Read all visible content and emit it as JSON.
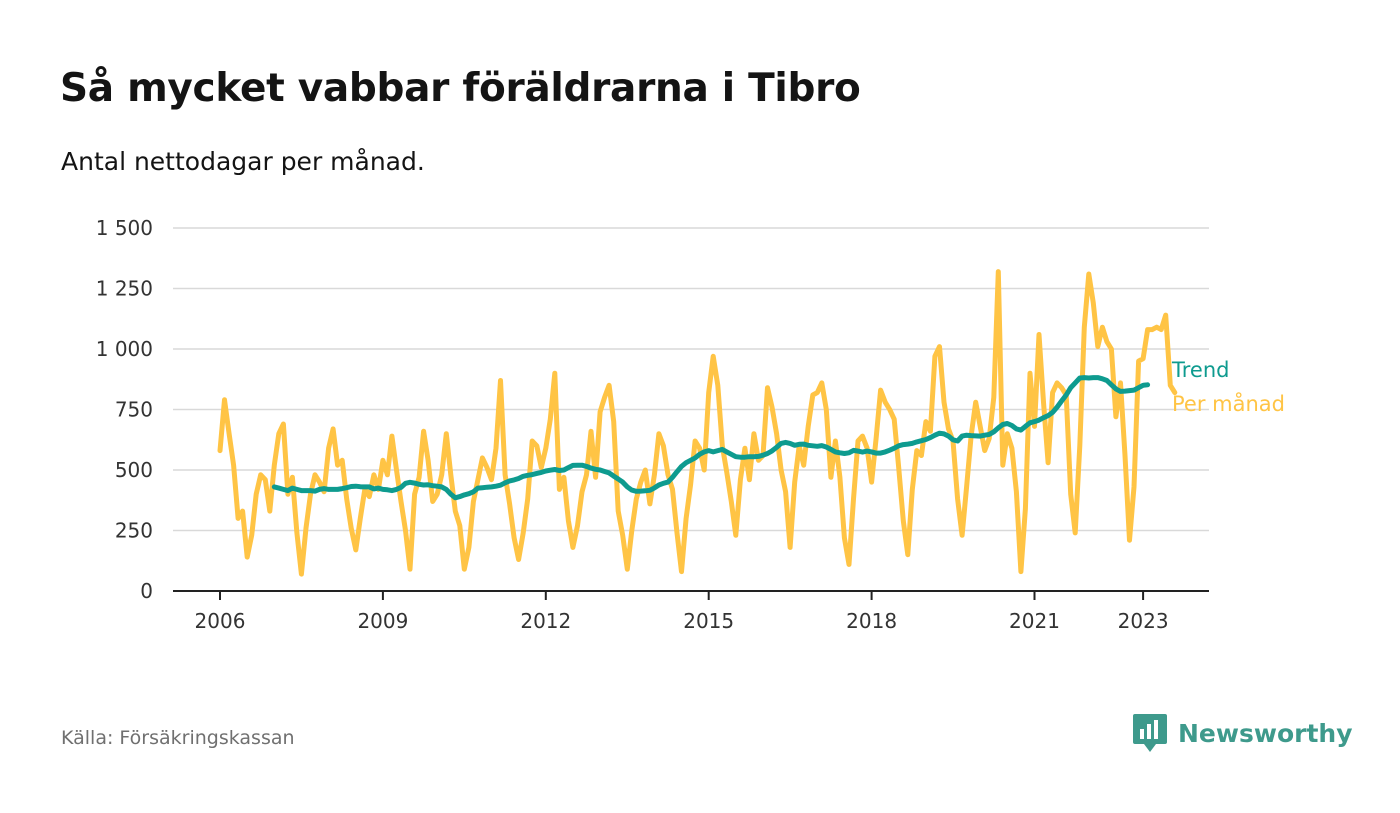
{
  "title": "Så mycket vabbar föräldrarna i Tibro",
  "subtitle": "Antal nettodagar per månad.",
  "source": "Källa: Försäkringskassan",
  "brand": {
    "name": "Newsworthy",
    "icon": "newsworthy-logo-icon",
    "color": "#3e9a8c"
  },
  "chart_data": {
    "type": "line",
    "x_start": "2006-01",
    "x_step": "month",
    "x_ticks": [
      "2006",
      "2009",
      "2012",
      "2015",
      "2018",
      "2021",
      "2023"
    ],
    "y_ticks": [
      "0",
      "250",
      "500",
      "750",
      "1 000",
      "1 250",
      "1 500"
    ],
    "ylim": [
      0,
      1500
    ],
    "grid": "horizontal",
    "legend": "right-end labels",
    "series": [
      {
        "name": "Per månad",
        "color": "#ffc445",
        "values": [
          580,
          790,
          650,
          520,
          300,
          330,
          140,
          230,
          400,
          480,
          460,
          330,
          520,
          650,
          690,
          400,
          470,
          240,
          70,
          260,
          400,
          480,
          450,
          410,
          590,
          670,
          520,
          540,
          380,
          260,
          170,
          300,
          420,
          390,
          480,
          420,
          540,
          480,
          640,
          500,
          370,
          250,
          90,
          400,
          470,
          660,
          540,
          370,
          400,
          480,
          650,
          480,
          330,
          270,
          90,
          180,
          370,
          460,
          550,
          510,
          460,
          590,
          870,
          480,
          360,
          220,
          130,
          240,
          380,
          620,
          600,
          510,
          590,
          710,
          900,
          420,
          470,
          290,
          180,
          270,
          410,
          480,
          660,
          470,
          740,
          800,
          850,
          700,
          330,
          230,
          90,
          250,
          380,
          450,
          500,
          360,
          480,
          650,
          600,
          480,
          420,
          240,
          80,
          300,
          440,
          620,
          590,
          500,
          820,
          970,
          850,
          600,
          490,
          370,
          230,
          460,
          590,
          460,
          650,
          540,
          560,
          840,
          760,
          650,
          500,
          410,
          180,
          450,
          600,
          520,
          680,
          810,
          820,
          860,
          750,
          470,
          620,
          470,
          220,
          110,
          380,
          620,
          640,
          590,
          450,
          630,
          830,
          780,
          750,
          710,
          510,
          290,
          150,
          420,
          580,
          560,
          700,
          660,
          970,
          1010,
          780,
          670,
          620,
          380,
          230,
          430,
          640,
          780,
          680,
          580,
          630,
          800,
          1320,
          520,
          650,
          590,
          410,
          80,
          340,
          900,
          680,
          1060,
          780,
          530,
          820,
          860,
          840,
          810,
          400,
          240,
          600,
          1090,
          1310,
          1190,
          1010,
          1090,
          1030,
          1000,
          720,
          860,
          560,
          210,
          430,
          950,
          960,
          1080,
          1080,
          1090,
          1080,
          1140,
          850,
          820
        ]
      },
      {
        "name": "Trend",
        "color": "#0e9b8f",
        "start_index": 12,
        "values": [
          430,
          425,
          420,
          415,
          425,
          420,
          415,
          415,
          415,
          413,
          420,
          423,
          420,
          420,
          420,
          423,
          427,
          432,
          433,
          431,
          430,
          430,
          422,
          425,
          420,
          418,
          415,
          420,
          428,
          445,
          449,
          446,
          441,
          438,
          439,
          435,
          433,
          430,
          420,
          400,
          385,
          390,
          397,
          402,
          410,
          425,
          427,
          429,
          430,
          433,
          437,
          447,
          455,
          459,
          465,
          474,
          478,
          481,
          486,
          490,
          496,
          499,
          502,
          498,
          500,
          510,
          519,
          520,
          520,
          515,
          508,
          503,
          500,
          494,
          488,
          475,
          463,
          450,
          430,
          417,
          412,
          413,
          414,
          416,
          426,
          438,
          445,
          450,
          470,
          493,
          515,
          530,
          540,
          550,
          565,
          575,
          580,
          575,
          580,
          585,
          575,
          565,
          555,
          553,
          553,
          555,
          555,
          556,
          561,
          568,
          579,
          594,
          610,
          614,
          610,
          602,
          606,
          607,
          602,
          600,
          598,
          601,
          595,
          585,
          575,
          571,
          568,
          571,
          581,
          578,
          574,
          578,
          575,
          570,
          570,
          575,
          582,
          590,
          600,
          605,
          607,
          610,
          616,
          621,
          626,
          634,
          644,
          652,
          649,
          640,
          625,
          620,
          640,
          644,
          642,
          641,
          640,
          644,
          647,
          658,
          674,
          688,
          692,
          684,
          670,
          665,
          680,
          695,
          700,
          706,
          716,
          725,
          738,
          760,
          785,
          810,
          840,
          860,
          880,
          882,
          880,
          882,
          882,
          877,
          870,
          852,
          835,
          825,
          826,
          828,
          830,
          840,
          850,
          852
        ]
      }
    ]
  }
}
